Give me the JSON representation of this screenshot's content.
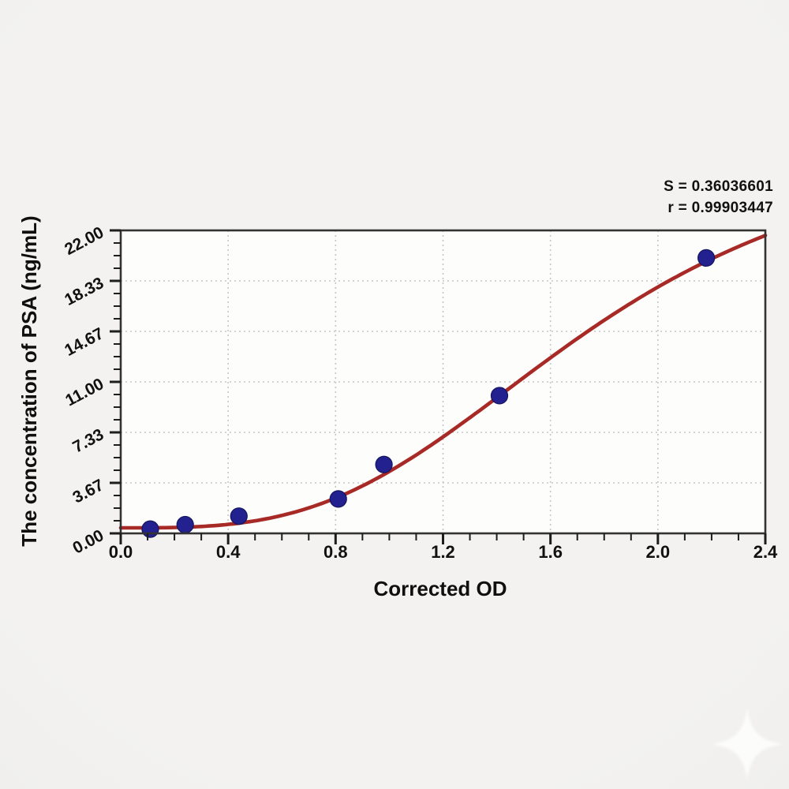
{
  "stats": {
    "s_line": "S = 0.36036601",
    "r_line": "r = 0.99903447"
  },
  "chart_data": {
    "type": "scatter",
    "title": "",
    "xlabel": "Corrected OD",
    "ylabel": "The concentration of PSA (ng/mL)",
    "xlim": [
      0.0,
      2.4
    ],
    "ylim": [
      0.0,
      22.0
    ],
    "x_ticks": {
      "values": [
        0.0,
        0.4,
        0.8,
        1.2,
        1.6,
        2.0,
        2.4
      ],
      "labels": [
        "0.0",
        "0.4",
        "0.8",
        "1.2",
        "1.6",
        "2.0",
        "2.4"
      ],
      "minor_step": 0.1
    },
    "y_ticks": {
      "values": [
        0.0,
        3.6667,
        7.3333,
        11.0,
        14.6667,
        18.3333,
        22.0
      ],
      "labels": [
        "0.00",
        "3.67",
        "7.33",
        "11.00",
        "14.67",
        "18.33",
        "22.00"
      ],
      "minor_divisions": 4
    },
    "grid": {
      "show": true,
      "style": "dotted",
      "on": "major"
    },
    "legend": {
      "show": false
    },
    "series": [
      {
        "name": "PSA standards",
        "type": "scatter",
        "marker": "circle",
        "color": "#22218f",
        "points": [
          {
            "x": 0.11,
            "y": 0.31
          },
          {
            "x": 0.24,
            "y": 0.63
          },
          {
            "x": 0.44,
            "y": 1.25
          },
          {
            "x": 0.81,
            "y": 2.5
          },
          {
            "x": 0.98,
            "y": 5.0
          },
          {
            "x": 1.41,
            "y": 10.0
          },
          {
            "x": 2.18,
            "y": 20.0
          }
        ]
      },
      {
        "name": "4PL fitted curve",
        "type": "line",
        "color": "#a82a26",
        "fit_model": "four_parameter_logistic",
        "fit_params": {
          "a": 0.4,
          "d": 29.5,
          "c": 1.76,
          "b": 3.2
        }
      }
    ],
    "annotations": {
      "S": "0.36036601",
      "r": "0.99903447"
    }
  },
  "colors": {
    "background": "#f0efed",
    "plot_background": "#fdfdfc",
    "frame": "#333333",
    "grid": "#c6c6c6",
    "tick": "#1d1d1d",
    "text": "#111111",
    "curve": "#a82a26",
    "point": "#22218f",
    "point_edge": "#15155e",
    "watermark": "#ffffff"
  }
}
